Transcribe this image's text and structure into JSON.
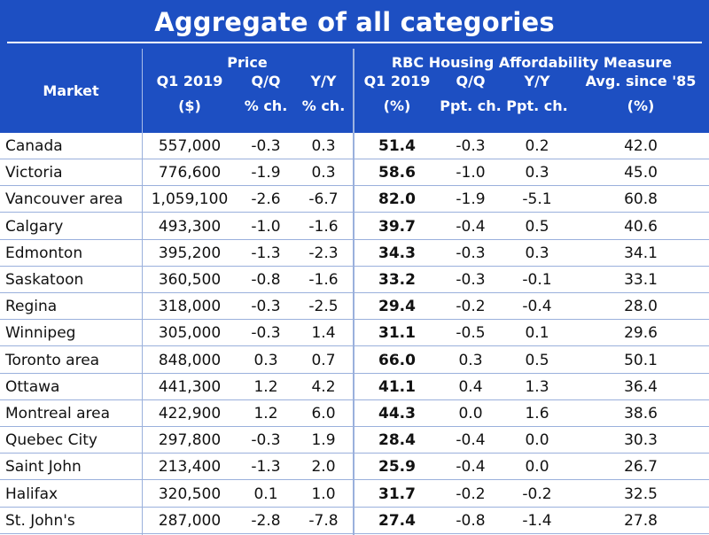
{
  "chart_data": {
    "type": "table",
    "title": "Aggregate of all categories",
    "group_headers": {
      "price": "Price",
      "rbc": "RBC Housing Affordability Measure"
    },
    "columns": [
      {
        "key": "market",
        "line1": "",
        "line2": "Market",
        "line3": ""
      },
      {
        "key": "price_q1",
        "line1": "",
        "line2": "Q1 2019",
        "line3": "($)"
      },
      {
        "key": "price_qq",
        "line1": "",
        "line2": "Q/Q",
        "line3": "% ch."
      },
      {
        "key": "price_yy",
        "line1": "",
        "line2": "Y/Y",
        "line3": "% ch."
      },
      {
        "key": "rbc_q1",
        "line1": "",
        "line2": "Q1 2019",
        "line3": "(%)"
      },
      {
        "key": "rbc_qq",
        "line1": "",
        "line2": "Q/Q",
        "line3": "Ppt. ch."
      },
      {
        "key": "rbc_yy",
        "line1": "",
        "line2": "Y/Y",
        "line3": "Ppt. ch."
      },
      {
        "key": "rbc_avg",
        "line1": "",
        "line2": "Avg. since '85",
        "line3": "(%)"
      }
    ],
    "rows": [
      [
        "Canada",
        "557,000",
        "-0.3",
        "0.3",
        "51.4",
        "-0.3",
        "0.2",
        "42.0"
      ],
      [
        "Victoria",
        "776,600",
        "-1.9",
        "0.3",
        "58.6",
        "-1.0",
        "0.3",
        "45.0"
      ],
      [
        "Vancouver area",
        "1,059,100",
        "-2.6",
        "-6.7",
        "82.0",
        "-1.9",
        "-5.1",
        "60.8"
      ],
      [
        "Calgary",
        "493,300",
        "-1.0",
        "-1.6",
        "39.7",
        "-0.4",
        "0.5",
        "40.6"
      ],
      [
        "Edmonton",
        "395,200",
        "-1.3",
        "-2.3",
        "34.3",
        "-0.3",
        "0.3",
        "34.1"
      ],
      [
        "Saskatoon",
        "360,500",
        "-0.8",
        "-1.6",
        "33.2",
        "-0.3",
        "-0.1",
        "33.1"
      ],
      [
        "Regina",
        "318,000",
        "-0.3",
        "-2.5",
        "29.4",
        "-0.2",
        "-0.4",
        "28.0"
      ],
      [
        "Winnipeg",
        "305,000",
        "-0.3",
        "1.4",
        "31.1",
        "-0.5",
        "0.1",
        "29.6"
      ],
      [
        "Toronto area",
        "848,000",
        "0.3",
        "0.7",
        "66.0",
        "0.3",
        "0.5",
        "50.1"
      ],
      [
        "Ottawa",
        "441,300",
        "1.2",
        "4.2",
        "41.1",
        "0.4",
        "1.3",
        "36.4"
      ],
      [
        "Montreal area",
        "422,900",
        "1.2",
        "6.0",
        "44.3",
        "0.0",
        "1.6",
        "38.6"
      ],
      [
        "Quebec City",
        "297,800",
        "-0.3",
        "1.9",
        "28.4",
        "-0.4",
        "0.0",
        "30.3"
      ],
      [
        "Saint John",
        "213,400",
        "-1.3",
        "2.0",
        "25.9",
        "-0.4",
        "0.0",
        "26.7"
      ],
      [
        "Halifax",
        "320,500",
        "0.1",
        "1.0",
        "31.7",
        "-0.2",
        "-0.2",
        "32.5"
      ],
      [
        "St. John's",
        "287,000",
        "-2.8",
        "-7.8",
        "27.4",
        "-0.8",
        "-1.4",
        "27.8"
      ]
    ],
    "bold_column": "rbc_q1",
    "colors": {
      "header_bg": "#1d4fc2",
      "header_text": "#ffffff",
      "grid": "#9ab0dc",
      "body_text": "#111111"
    }
  }
}
